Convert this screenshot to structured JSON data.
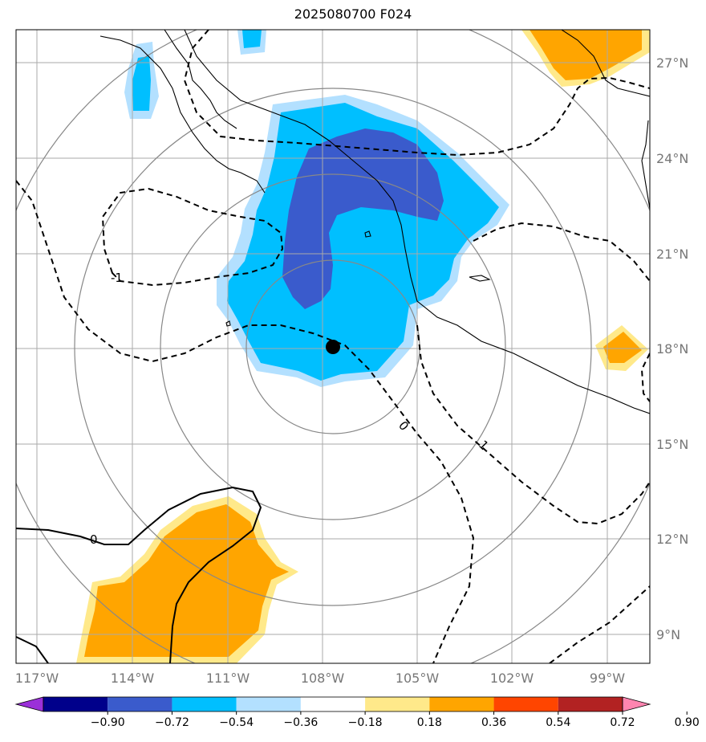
{
  "map": {
    "title": "2025080700 F024",
    "lon_labels": [
      "117°W",
      "114°W",
      "111°W",
      "108°W",
      "105°W",
      "102°W",
      "99°W"
    ],
    "lat_labels": [
      "27°N",
      "24°N",
      "21°N",
      "18°N",
      "15°N",
      "12°N",
      "9°N"
    ],
    "contour_labels": [
      "-1",
      "0",
      "1",
      "0"
    ],
    "center_marker": {
      "lat": 18.1,
      "lon": -107.8
    },
    "colors": {
      "dark_blue": "#3a5bcc",
      "cyan": "#00bfff",
      "light_blue": "#b3e0ff",
      "light_yellow": "#ffe98a",
      "orange": "#ffa500",
      "ring": "#888888",
      "grid": "#aaaaaa"
    }
  },
  "colorbar": {
    "labels": [
      "−0.90",
      "−0.72",
      "−0.54",
      "−0.36",
      "−0.18",
      "0.18",
      "0.36",
      "0.54",
      "0.72",
      "0.90"
    ],
    "colors": [
      "#9b30d9",
      "#00008b",
      "#3a5bcc",
      "#00bfff",
      "#b3e0ff",
      "#ffffff",
      "#ffe98a",
      "#ffa500",
      "#ff4500",
      "#b22222",
      "#ff85b0"
    ]
  }
}
